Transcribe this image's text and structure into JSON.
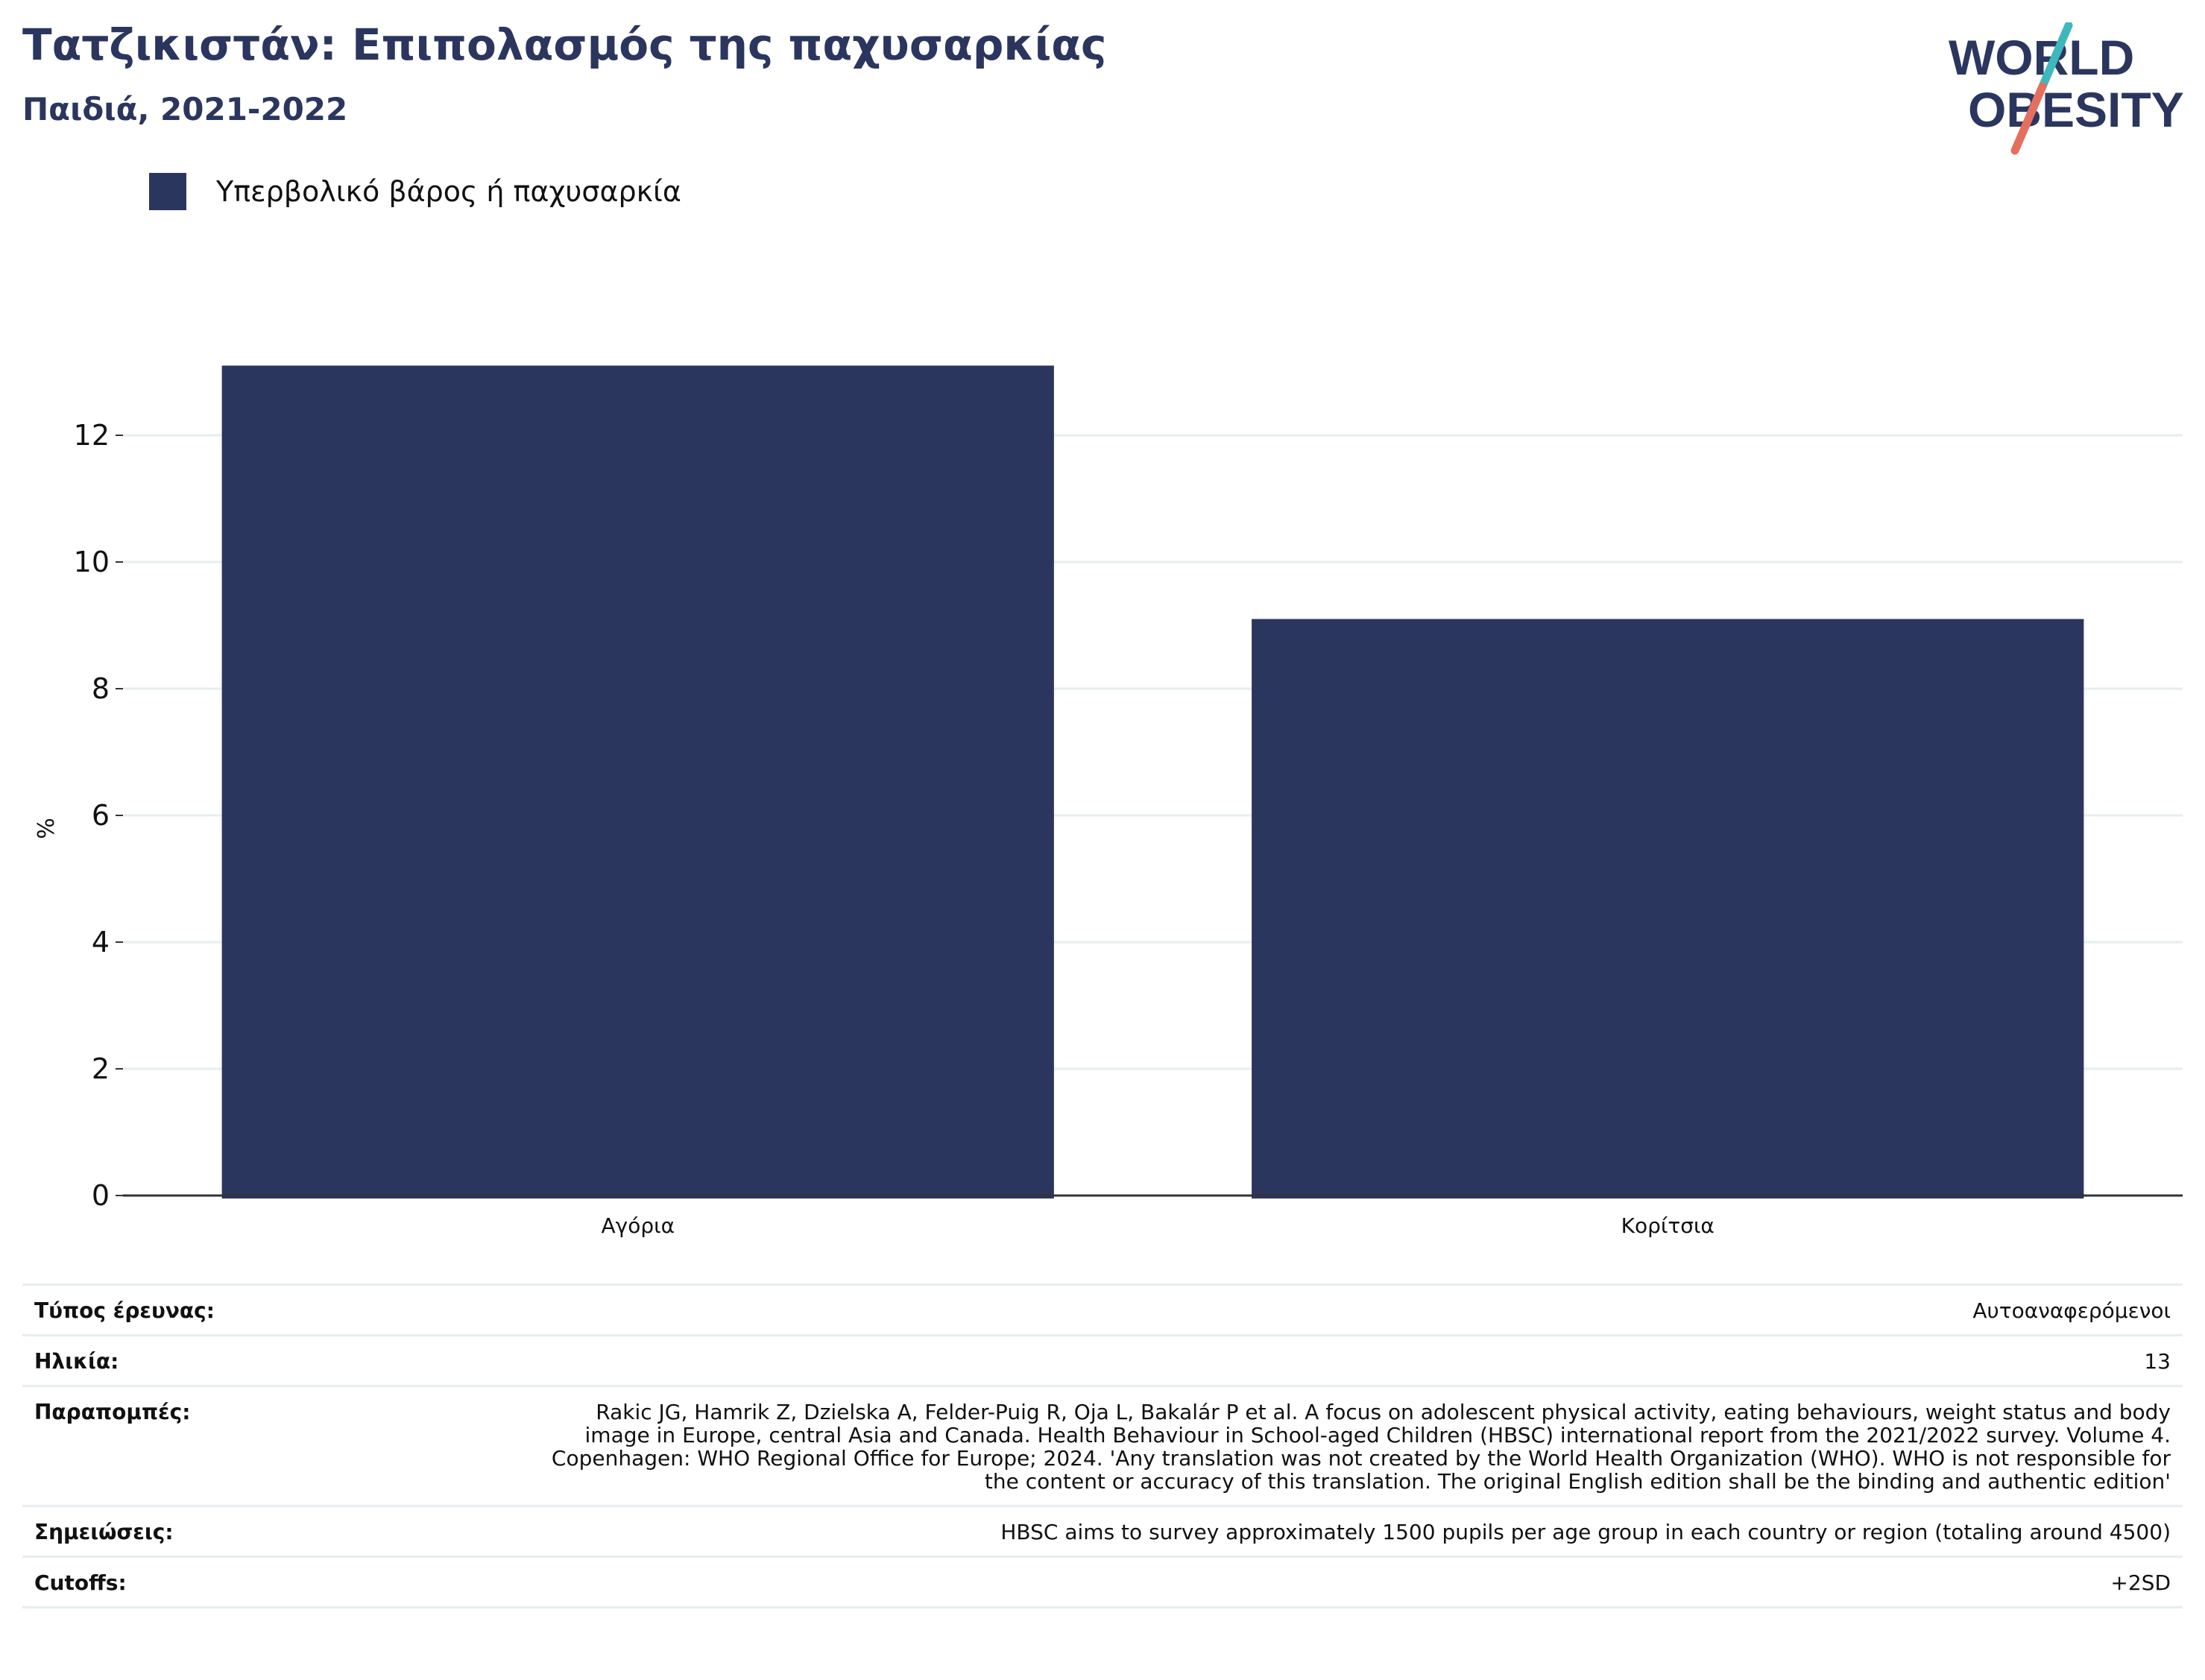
{
  "header": {
    "title": "Τατζικιστάν: Επιπολασμός της παχυσαρκίας",
    "subtitle": "Παιδιά, 2021-2022"
  },
  "logo": {
    "line1": "WORLD",
    "line2": "OBESITY"
  },
  "colors": {
    "bar": "#2b365f",
    "title": "#2b365f",
    "grid": "#e6eef0",
    "logo_teal": "#3fb8bd",
    "logo_coral": "#e56f5d"
  },
  "chart_data": {
    "type": "bar",
    "categories": [
      "Αγόρια",
      "Κορίτσια"
    ],
    "series": [
      {
        "name": "Υπερβολικό βάρος ή παχυσαρκία",
        "values": [
          13.1,
          9.1
        ]
      }
    ],
    "ylabel": "%",
    "ylim": [
      0,
      14
    ],
    "yticks": [
      0,
      2,
      4,
      6,
      8,
      10,
      12
    ],
    "grid": true,
    "legend_position": "top-left"
  },
  "info": [
    {
      "key": "Τύπος έρευνας:",
      "value": "Αυτοαναφερόμενοι"
    },
    {
      "key": "Ηλικία:",
      "value": "13"
    },
    {
      "key": "Παραπομπές:",
      "value": "Rakic JG, Hamrik Z, Dzielska A, Felder-Puig R, Oja L, Bakalár P et al. A focus on adolescent physical activity, eating behaviours, weight status and body image in Europe, central Asia and Canada. Health Behaviour in School-aged Children (HBSC) international report from the 2021/2022 survey. Volume 4. Copenhagen: WHO Regional Office for Europe; 2024. 'Any translation was not created by the World Health Organization (WHO). WHO is not responsible for the content or accuracy of this translation. The original English edition shall be the binding and authentic edition'"
    },
    {
      "key": "Σημειώσεις:",
      "value": "HBSC aims to survey approximately 1500 pupils per age group in each country or region (totaling around 4500)"
    },
    {
      "key": "Cutoffs:",
      "value": "+2SD"
    }
  ]
}
